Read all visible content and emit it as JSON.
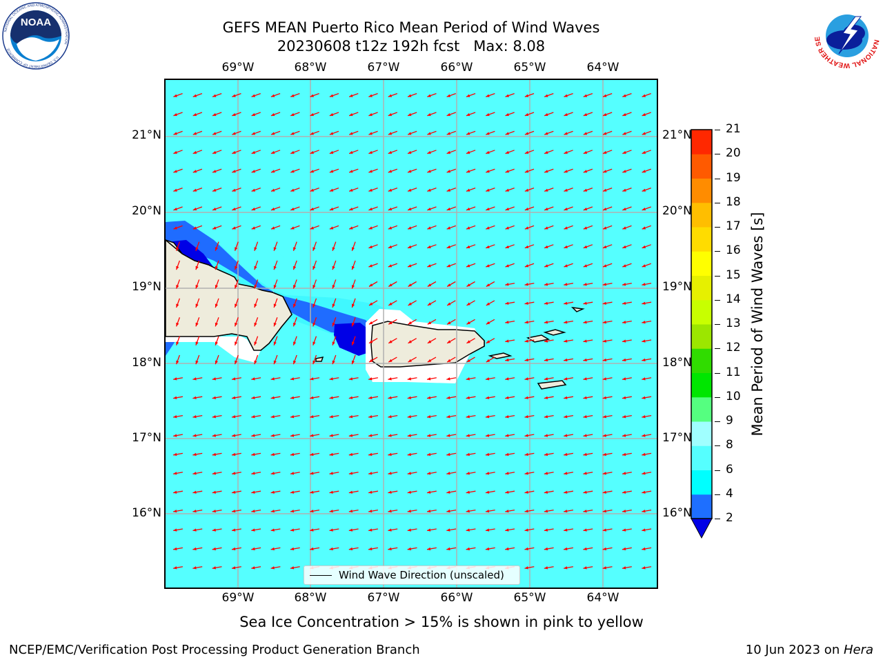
{
  "title": {
    "line1": "GEFS MEAN Puerto Rico Mean Period of Wind Waves",
    "line2": "20230608 t12z 192h fcst   Max: 8.08"
  },
  "logos": {
    "noaa_text": "NOAA",
    "noaa_ring_top": "NATIONAL OCEANIC AND ATMOSPHERIC ADMINISTRATION",
    "noaa_ring_bottom": "U.S. DEPARTMENT OF COMMERCE",
    "nws_ring": "NATIONAL WEATHER SERVICE"
  },
  "map": {
    "lon_labels": [
      "69°W",
      "68°W",
      "67°W",
      "66°W",
      "65°W",
      "64°W"
    ],
    "lat_labels": [
      "21°N",
      "20°N",
      "19°N",
      "18°N",
      "17°N",
      "16°N"
    ],
    "legend_label": "Wind Wave Direction (unscaled)",
    "arrow_color": "#ff0000",
    "grid": true,
    "colors": {
      "ocean": "#55ffff",
      "land": "#eeecdc",
      "deep_blue": "#0000e6",
      "blue": "#1f6cff",
      "light_cyan": "#a0ffff"
    }
  },
  "colorbar": {
    "title": "Mean Period of Wind Waves [s]",
    "ticks": [
      "2",
      "4",
      "6",
      "8",
      "9",
      "10",
      "11",
      "12",
      "13",
      "14",
      "15",
      "16",
      "17",
      "18",
      "19",
      "20",
      "21"
    ],
    "colors": [
      "#1e6fff",
      "#00ffff",
      "#55ffff",
      "#a0ffff",
      "#55ff80",
      "#00e600",
      "#30dc00",
      "#9ce600",
      "#c8ff00",
      "#e6f000",
      "#ffff00",
      "#ffdc00",
      "#ffbe00",
      "#ff8c00",
      "#ff5a00",
      "#ff2800",
      "#e60000"
    ],
    "underflow_color": "#0000e6"
  },
  "subtitle": "Sea Ice Concentration > 15% is shown in pink to yellow",
  "footer": {
    "left": "NCEP/EMC/Verification Post Processing Product Generation Branch",
    "right_date": "10 Jun 2023 on ",
    "right_host": "Hera"
  }
}
